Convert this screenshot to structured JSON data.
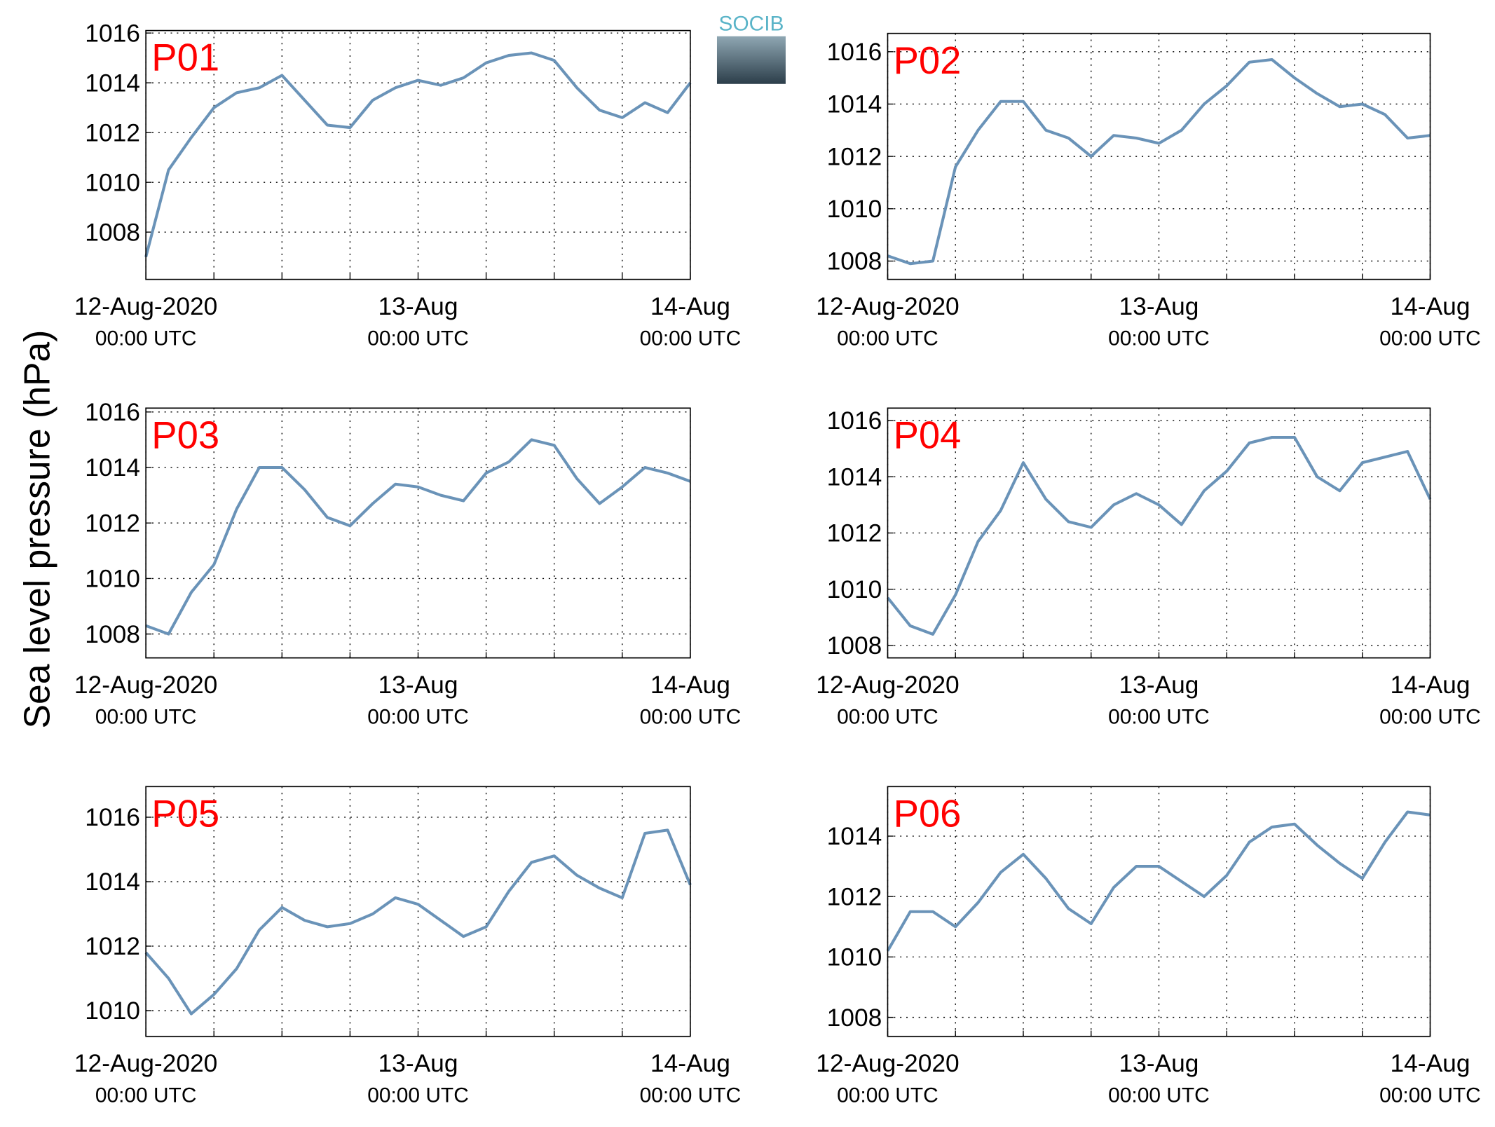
{
  "ylabel": "Sea level pressure (hPa)",
  "logo_text": "SOCIB",
  "chart_data": [
    {
      "type": "line",
      "title": "P01",
      "x": [
        "2020-08-12T00:00",
        "2020-08-12T02:00",
        "2020-08-12T04:00",
        "2020-08-12T06:00",
        "2020-08-12T08:00",
        "2020-08-12T10:00",
        "2020-08-12T12:00",
        "2020-08-12T14:00",
        "2020-08-12T16:00",
        "2020-08-12T18:00",
        "2020-08-12T20:00",
        "2020-08-12T22:00",
        "2020-08-13T00:00",
        "2020-08-13T02:00",
        "2020-08-13T04:00",
        "2020-08-13T06:00",
        "2020-08-13T08:00",
        "2020-08-13T10:00",
        "2020-08-13T12:00",
        "2020-08-13T14:00",
        "2020-08-13T16:00",
        "2020-08-13T18:00",
        "2020-08-13T20:00",
        "2020-08-13T22:00",
        "2020-08-14T00:00"
      ],
      "series": [
        {
          "color": "#6a93b8",
          "values": [
            1007,
            1010.5,
            1011.8,
            1013,
            1013.6,
            1013.8,
            1014.3,
            1013.3,
            1012.3,
            1012.2,
            1013.3,
            1013.8,
            1014.1,
            1013.9,
            1014.2,
            1014.8,
            1015.1,
            1015.2,
            1014.9,
            1013.8,
            1012.9,
            1012.6,
            1013.2,
            1012.8,
            1014
          ]
        }
      ],
      "xlim": [
        "2020-08-12T00:00",
        "2020-08-14T00:00"
      ],
      "xticks": [
        {
          "value": "2020-08-12T00:00",
          "label": [
            "12-Aug-2020",
            "00:00 UTC"
          ]
        },
        "2020-08-12T06:00",
        "2020-08-12T12:00",
        "2020-08-12T18:00",
        {
          "value": "2020-08-13T00:00",
          "label": [
            "13-Aug",
            "00:00 UTC"
          ]
        },
        "2020-08-13T06:00",
        "2020-08-13T12:00",
        "2020-08-13T18:00",
        {
          "value": "2020-08-14T00:00",
          "label": [
            "14-Aug",
            "00:00 UTC"
          ]
        }
      ],
      "ylim": [
        1006.1,
        1016.1
      ],
      "yticks": [
        1008,
        1010,
        1012,
        1014,
        1016
      ],
      "grid": true
    },
    {
      "type": "line",
      "title": "P02",
      "x": [
        "2020-08-12T00:00",
        "2020-08-12T02:00",
        "2020-08-12T04:00",
        "2020-08-12T06:00",
        "2020-08-12T08:00",
        "2020-08-12T10:00",
        "2020-08-12T12:00",
        "2020-08-12T14:00",
        "2020-08-12T16:00",
        "2020-08-12T18:00",
        "2020-08-12T20:00",
        "2020-08-12T22:00",
        "2020-08-13T00:00",
        "2020-08-13T02:00",
        "2020-08-13T04:00",
        "2020-08-13T06:00",
        "2020-08-13T08:00",
        "2020-08-13T10:00",
        "2020-08-13T12:00",
        "2020-08-13T14:00",
        "2020-08-13T16:00",
        "2020-08-13T18:00",
        "2020-08-13T20:00",
        "2020-08-13T22:00",
        "2020-08-14T00:00"
      ],
      "series": [
        {
          "color": "#6a93b8",
          "values": [
            1008.2,
            1007.9,
            1008,
            1011.6,
            1013,
            1014.1,
            1014.1,
            1013,
            1012.7,
            1012,
            1012.8,
            1012.7,
            1012.5,
            1013,
            1014,
            1014.7,
            1015.6,
            1015.7,
            1015,
            1014.4,
            1013.9,
            1014,
            1013.6,
            1012.7,
            1012.8
          ]
        }
      ],
      "xlim": [
        "2020-08-12T00:00",
        "2020-08-14T00:00"
      ],
      "xticks": [
        {
          "value": "2020-08-12T00:00",
          "label": [
            "12-Aug-2020",
            "00:00 UTC"
          ]
        },
        "2020-08-12T06:00",
        "2020-08-12T12:00",
        "2020-08-12T18:00",
        {
          "value": "2020-08-13T00:00",
          "label": [
            "13-Aug",
            "00:00 UTC"
          ]
        },
        "2020-08-13T06:00",
        "2020-08-13T12:00",
        "2020-08-13T18:00",
        {
          "value": "2020-08-14T00:00",
          "label": [
            "14-Aug",
            "00:00 UTC"
          ]
        }
      ],
      "ylim": [
        1007.3,
        1016.7
      ],
      "yticks": [
        1008,
        1010,
        1012,
        1014,
        1016
      ],
      "grid": true
    },
    {
      "type": "line",
      "title": "P03",
      "x": [
        "2020-08-12T00:00",
        "2020-08-12T02:00",
        "2020-08-12T04:00",
        "2020-08-12T06:00",
        "2020-08-12T08:00",
        "2020-08-12T10:00",
        "2020-08-12T12:00",
        "2020-08-12T14:00",
        "2020-08-12T16:00",
        "2020-08-12T18:00",
        "2020-08-12T20:00",
        "2020-08-12T22:00",
        "2020-08-13T00:00",
        "2020-08-13T02:00",
        "2020-08-13T04:00",
        "2020-08-13T06:00",
        "2020-08-13T08:00",
        "2020-08-13T10:00",
        "2020-08-13T12:00",
        "2020-08-13T14:00",
        "2020-08-13T16:00",
        "2020-08-13T18:00",
        "2020-08-13T20:00",
        "2020-08-13T22:00",
        "2020-08-14T00:00"
      ],
      "series": [
        {
          "color": "#6a93b8",
          "values": [
            1008.3,
            1008,
            1009.5,
            1010.5,
            1012.5,
            1014,
            1014,
            1013.2,
            1012.2,
            1011.9,
            1012.7,
            1013.4,
            1013.3,
            1013,
            1012.8,
            1013.8,
            1014.2,
            1015,
            1014.8,
            1013.6,
            1012.7,
            1013.3,
            1014,
            1013.8,
            1013.5
          ]
        }
      ],
      "xlim": [
        "2020-08-12T00:00",
        "2020-08-14T00:00"
      ],
      "xticks": [
        {
          "value": "2020-08-12T00:00",
          "label": [
            "12-Aug-2020",
            "00:00 UTC"
          ]
        },
        "2020-08-12T06:00",
        "2020-08-12T12:00",
        "2020-08-12T18:00",
        {
          "value": "2020-08-13T00:00",
          "label": [
            "13-Aug",
            "00:00 UTC"
          ]
        },
        "2020-08-13T06:00",
        "2020-08-13T12:00",
        "2020-08-13T18:00",
        {
          "value": "2020-08-14T00:00",
          "label": [
            "14-Aug",
            "00:00 UTC"
          ]
        }
      ],
      "ylim": [
        1007.14,
        1016.14
      ],
      "yticks": [
        1008,
        1010,
        1012,
        1014,
        1016
      ],
      "grid": true
    },
    {
      "type": "line",
      "title": "P04",
      "x": [
        "2020-08-12T00:00",
        "2020-08-12T02:00",
        "2020-08-12T04:00",
        "2020-08-12T06:00",
        "2020-08-12T08:00",
        "2020-08-12T10:00",
        "2020-08-12T12:00",
        "2020-08-12T14:00",
        "2020-08-12T16:00",
        "2020-08-12T18:00",
        "2020-08-12T20:00",
        "2020-08-12T22:00",
        "2020-08-13T00:00",
        "2020-08-13T02:00",
        "2020-08-13T04:00",
        "2020-08-13T06:00",
        "2020-08-13T08:00",
        "2020-08-13T10:00",
        "2020-08-13T12:00",
        "2020-08-13T14:00",
        "2020-08-13T16:00",
        "2020-08-13T18:00",
        "2020-08-13T20:00",
        "2020-08-13T22:00",
        "2020-08-14T00:00"
      ],
      "series": [
        {
          "color": "#6a93b8",
          "values": [
            1009.7,
            1008.7,
            1008.4,
            1009.8,
            1011.7,
            1012.8,
            1014.5,
            1013.2,
            1012.4,
            1012.2,
            1013,
            1013.4,
            1013,
            1012.3,
            1013.5,
            1014.2,
            1015.2,
            1015.4,
            1015.4,
            1014,
            1013.5,
            1014.5,
            1014.7,
            1014.9,
            1013.2
          ]
        }
      ],
      "xlim": [
        "2020-08-12T00:00",
        "2020-08-14T00:00"
      ],
      "xticks": [
        {
          "value": "2020-08-12T00:00",
          "label": [
            "12-Aug-2020",
            "00:00 UTC"
          ]
        },
        "2020-08-12T06:00",
        "2020-08-12T12:00",
        "2020-08-12T18:00",
        {
          "value": "2020-08-13T00:00",
          "label": [
            "13-Aug",
            "00:00 UTC"
          ]
        },
        "2020-08-13T06:00",
        "2020-08-13T12:00",
        "2020-08-13T18:00",
        {
          "value": "2020-08-14T00:00",
          "label": [
            "14-Aug",
            "00:00 UTC"
          ]
        }
      ],
      "ylim": [
        1007.56,
        1016.44
      ],
      "yticks": [
        1008,
        1010,
        1012,
        1014,
        1016
      ],
      "grid": true
    },
    {
      "type": "line",
      "title": "P05",
      "x": [
        "2020-08-12T00:00",
        "2020-08-12T02:00",
        "2020-08-12T04:00",
        "2020-08-12T06:00",
        "2020-08-12T08:00",
        "2020-08-12T10:00",
        "2020-08-12T12:00",
        "2020-08-12T14:00",
        "2020-08-12T16:00",
        "2020-08-12T18:00",
        "2020-08-12T20:00",
        "2020-08-12T22:00",
        "2020-08-13T00:00",
        "2020-08-13T02:00",
        "2020-08-13T04:00",
        "2020-08-13T06:00",
        "2020-08-13T08:00",
        "2020-08-13T10:00",
        "2020-08-13T12:00",
        "2020-08-13T14:00",
        "2020-08-13T16:00",
        "2020-08-13T18:00",
        "2020-08-13T20:00",
        "2020-08-13T22:00",
        "2020-08-14T00:00"
      ],
      "series": [
        {
          "color": "#6a93b8",
          "values": [
            1011.8,
            1011,
            1009.9,
            1010.5,
            1011.3,
            1012.5,
            1013.2,
            1012.8,
            1012.6,
            1012.7,
            1013,
            1013.5,
            1013.3,
            1012.8,
            1012.3,
            1012.6,
            1013.7,
            1014.6,
            1014.8,
            1014.2,
            1013.8,
            1013.5,
            1015.5,
            1015.6,
            1013.9
          ]
        }
      ],
      "xlim": [
        "2020-08-12T00:00",
        "2020-08-14T00:00"
      ],
      "xticks": [
        {
          "value": "2020-08-12T00:00",
          "label": [
            "12-Aug-2020",
            "00:00 UTC"
          ]
        },
        "2020-08-12T06:00",
        "2020-08-12T12:00",
        "2020-08-12T18:00",
        {
          "value": "2020-08-13T00:00",
          "label": [
            "13-Aug",
            "00:00 UTC"
          ]
        },
        "2020-08-13T06:00",
        "2020-08-13T12:00",
        "2020-08-13T18:00",
        {
          "value": "2020-08-14T00:00",
          "label": [
            "14-Aug",
            "00:00 UTC"
          ]
        }
      ],
      "ylim": [
        1009.2,
        1016.95
      ],
      "yticks": [
        1010,
        1012,
        1014,
        1016
      ],
      "grid": true
    },
    {
      "type": "line",
      "title": "P06",
      "x": [
        "2020-08-12T00:00",
        "2020-08-12T02:00",
        "2020-08-12T04:00",
        "2020-08-12T06:00",
        "2020-08-12T08:00",
        "2020-08-12T10:00",
        "2020-08-12T12:00",
        "2020-08-12T14:00",
        "2020-08-12T16:00",
        "2020-08-12T18:00",
        "2020-08-12T20:00",
        "2020-08-12T22:00",
        "2020-08-13T00:00",
        "2020-08-13T02:00",
        "2020-08-13T04:00",
        "2020-08-13T06:00",
        "2020-08-13T08:00",
        "2020-08-13T10:00",
        "2020-08-13T12:00",
        "2020-08-13T14:00",
        "2020-08-13T16:00",
        "2020-08-13T18:00",
        "2020-08-13T20:00",
        "2020-08-13T22:00",
        "2020-08-14T00:00"
      ],
      "series": [
        {
          "color": "#6a93b8",
          "values": [
            1010.2,
            1011.5,
            1011.5,
            1011,
            1011.8,
            1012.8,
            1013.4,
            1012.6,
            1011.6,
            1011.1,
            1012.3,
            1013,
            1013,
            1012.5,
            1012,
            1012.7,
            1013.8,
            1014.3,
            1014.4,
            1013.7,
            1013.1,
            1012.6,
            1013.8,
            1014.8,
            1014.7
          ]
        }
      ],
      "xlim": [
        "2020-08-12T00:00",
        "2020-08-14T00:00"
      ],
      "xticks": [
        {
          "value": "2020-08-12T00:00",
          "label": [
            "12-Aug-2020",
            "00:00 UTC"
          ]
        },
        "2020-08-12T06:00",
        "2020-08-12T12:00",
        "2020-08-12T18:00",
        {
          "value": "2020-08-13T00:00",
          "label": [
            "13-Aug",
            "00:00 UTC"
          ]
        },
        "2020-08-13T06:00",
        "2020-08-13T12:00",
        "2020-08-13T18:00",
        {
          "value": "2020-08-14T00:00",
          "label": [
            "14-Aug",
            "00:00 UTC"
          ]
        }
      ],
      "ylim": [
        1007.37,
        1015.64
      ],
      "yticks": [
        1008,
        1010,
        1012,
        1014
      ],
      "grid": true
    }
  ]
}
